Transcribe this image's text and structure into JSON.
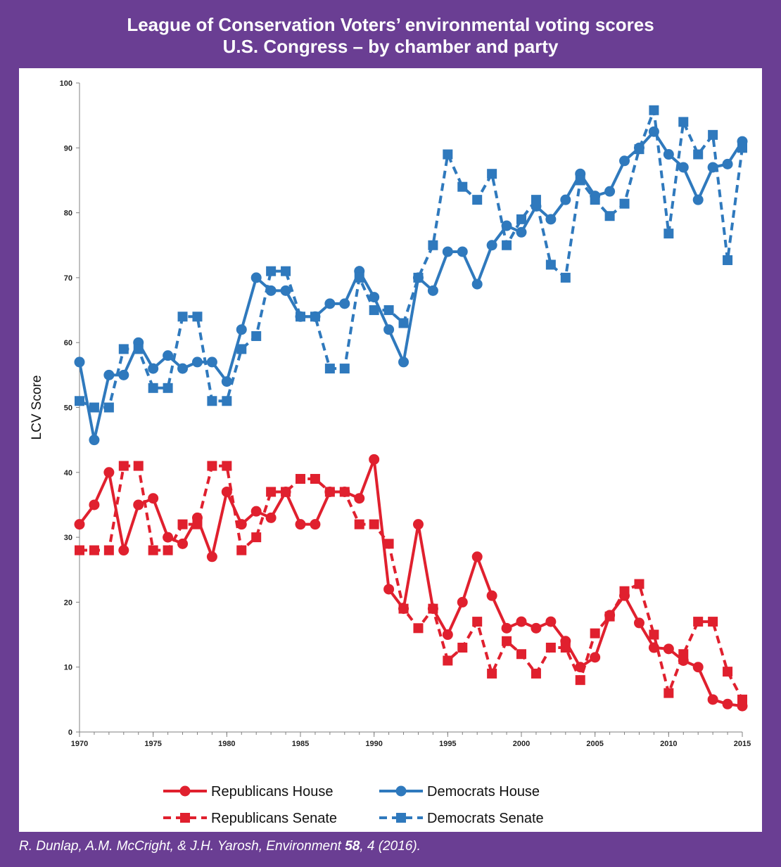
{
  "header": {
    "title_line1": "League of Conservation Voters’ environmental voting scores",
    "title_line2": "U.S. Congress – by chamber and party"
  },
  "source": {
    "authors": "R. Dunlap, A.M. McCright, & J.H. Yarosh, ",
    "journal": "Environment ",
    "volume": "58",
    "rest": ", 4 (2016)."
  },
  "colors": {
    "background": "#6a3e93",
    "republican": "#e0202e",
    "democrat": "#2f79bd"
  },
  "chart_data": {
    "type": "line",
    "ylabel": "LCV Score",
    "xlabel": "",
    "xlim": [
      1970,
      2015
    ],
    "ylim": [
      0,
      100
    ],
    "xticks": [
      1970,
      1975,
      1980,
      1985,
      1990,
      1995,
      2000,
      2005,
      2010,
      2015
    ],
    "yticks": [
      0,
      10,
      20,
      30,
      40,
      50,
      60,
      70,
      80,
      90,
      100
    ],
    "grid": false,
    "legend_position": "bottom",
    "x": [
      1970,
      1971,
      1972,
      1973,
      1974,
      1975,
      1976,
      1977,
      1978,
      1979,
      1980,
      1981,
      1982,
      1983,
      1984,
      1985,
      1986,
      1987,
      1988,
      1989,
      1990,
      1991,
      1992,
      1993,
      1994,
      1995,
      1996,
      1997,
      1998,
      1999,
      2000,
      2001,
      2002,
      2003,
      2004,
      2005,
      2006,
      2007,
      2008,
      2009,
      2010,
      2011,
      2012,
      2013,
      2014,
      2015
    ],
    "series": [
      {
        "name": "Republicans House",
        "party": "republican",
        "style": "solid",
        "marker": "circle",
        "values": [
          32,
          35,
          40,
          28,
          35,
          36,
          30,
          29,
          33,
          27,
          37,
          32,
          34,
          33,
          37,
          32,
          32,
          37,
          37,
          36,
          42,
          22,
          19,
          32,
          19,
          15,
          20,
          27,
          21,
          16,
          17,
          16,
          17,
          14,
          10,
          11.5,
          18,
          21,
          16.8,
          13,
          12.8,
          11,
          10,
          5,
          4.3,
          4
        ]
      },
      {
        "name": "Republicans Senate",
        "party": "republican",
        "style": "dashed",
        "marker": "square",
        "values": [
          28,
          28,
          28,
          41,
          41,
          28,
          28,
          32,
          32,
          41,
          41,
          28,
          30,
          37,
          37,
          39,
          39,
          37,
          37,
          32,
          32,
          29,
          19,
          16,
          19,
          11,
          13,
          17,
          9,
          14,
          12,
          9,
          13,
          13,
          8,
          15.2,
          17.8,
          21.7,
          22.8,
          15,
          6,
          12,
          17,
          17,
          9.3,
          5
        ]
      },
      {
        "name": "Democrats House",
        "party": "democrat",
        "style": "solid",
        "marker": "circle",
        "values": [
          57,
          45,
          55,
          55,
          60,
          56,
          58,
          56,
          57,
          57,
          54,
          62,
          70,
          68,
          68,
          64,
          64,
          66,
          66,
          71,
          67,
          62,
          57,
          70,
          68,
          74,
          74,
          69,
          75,
          78,
          77,
          81,
          79,
          82,
          86,
          82.6,
          83.3,
          88,
          90,
          92.5,
          89,
          87,
          82,
          87,
          87.5,
          91
        ]
      },
      {
        "name": "Democrats Senate",
        "party": "democrat",
        "style": "dashed",
        "marker": "square",
        "values": [
          51,
          50,
          50,
          59,
          59,
          53,
          53,
          64,
          64,
          51,
          51,
          59,
          61,
          71,
          71,
          64,
          64,
          56,
          56,
          70,
          65,
          65,
          63,
          70,
          75,
          89,
          84,
          82,
          86,
          75,
          79,
          82,
          72,
          70,
          85,
          82,
          79.5,
          81.4,
          89.8,
          95.8,
          76.8,
          94,
          89,
          92,
          72.7,
          90
        ]
      }
    ]
  }
}
